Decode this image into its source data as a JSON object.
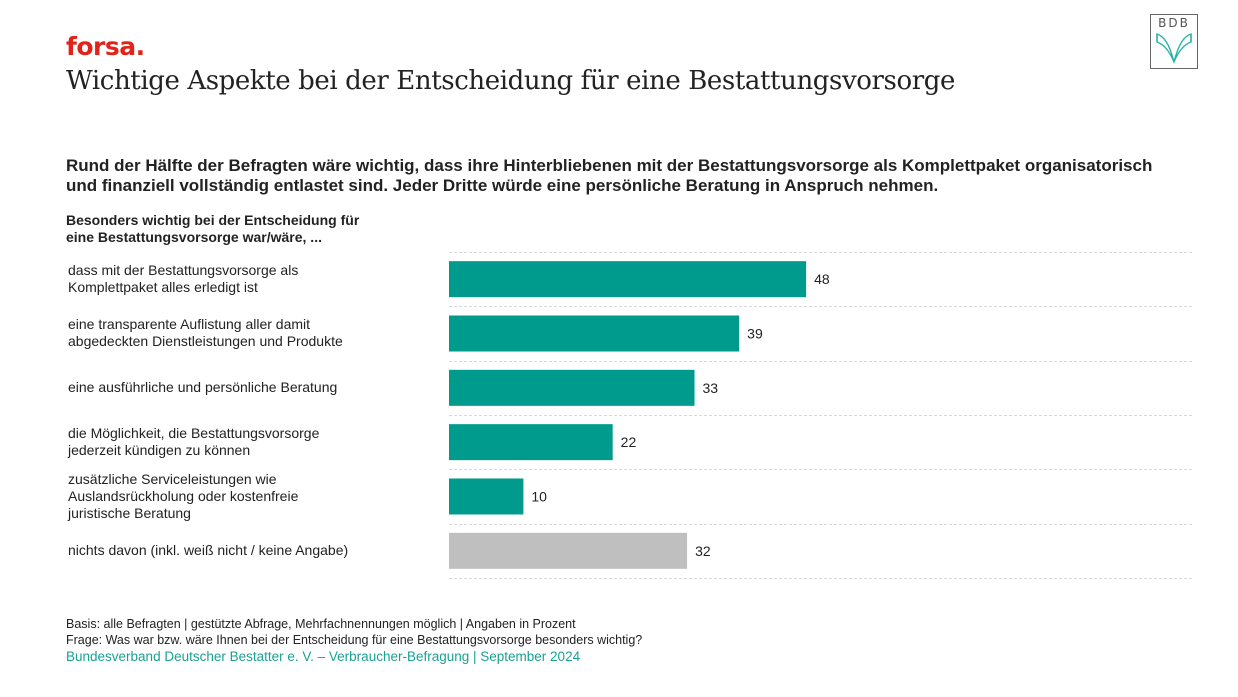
{
  "header": {
    "brand": "forsa.",
    "title": "Wichtige Aspekte bei der Entscheidung für eine Bestattungsvorsorge",
    "logo_text": "BDB",
    "logo_icon": "open-book-icon"
  },
  "headline": "Rund der Hälfte der Befragten wäre wichtig, dass ihre Hinterbliebenen mit der Bestattungsvorsorge als Komplettpaket organisatorisch und finanziell vollständig entlastet sind. Jeder Dritte würde eine persönliche Beratung in Anspruch nehmen.",
  "subheading_lines": [
    "Besonders wichtig bei der Entscheidung für",
    "eine Bestattungsvorsorge war/wäre, ..."
  ],
  "colors": {
    "brand": "#e2231a",
    "bar_primary": "#009b8d",
    "bar_neutral": "#bfbfbf",
    "source": "#1aa193",
    "gridline": "#d9d9d9"
  },
  "chart_data": {
    "type": "bar",
    "orientation": "horizontal",
    "title": "Wichtige Aspekte bei der Entscheidung für eine Bestattungsvorsorge",
    "xlabel": "",
    "ylabel": "Besonders wichtig bei der Entscheidung für eine Bestattungsvorsorge war/wäre, ...",
    "unit": "Prozent",
    "xlim": [
      0,
      100
    ],
    "grid": "horizontal separators (dashed)",
    "categories": [
      [
        "dass mit der Bestattungsvorsorge als",
        "Komplettpaket alles erledigt ist"
      ],
      [
        "eine transparente Auflistung aller damit",
        "abgedeckten Dienstleistungen und Produkte"
      ],
      [
        "eine ausführliche und persönliche Beratung"
      ],
      [
        "die Möglichkeit, die Bestattungsvorsorge",
        "jederzeit kündigen zu können"
      ],
      [
        "zusätzliche Serviceleistungen wie",
        "Auslandsrückholung oder kostenfreie",
        "juristische Beratung"
      ],
      [
        "nichts davon (inkl. weiß nicht / keine Angabe)"
      ]
    ],
    "values": [
      48,
      39,
      33,
      22,
      10,
      32
    ],
    "bar_color_keys": [
      "bar_primary",
      "bar_primary",
      "bar_primary",
      "bar_primary",
      "bar_primary",
      "bar_neutral"
    ],
    "data_labels": [
      "48",
      "39",
      "33",
      "22",
      "10",
      "32"
    ]
  },
  "footer": {
    "basis": "Basis: alle Befragten | gestützte Abfrage, Mehrfachnennungen möglich | Angaben in Prozent",
    "question": "Frage: Was war bzw. wäre Ihnen bei der Entscheidung für eine Bestattungsvorsorge besonders wichtig?",
    "source": "Bundesverband Deutscher Bestatter e. V. – Verbraucher-Befragung | September 2024"
  }
}
